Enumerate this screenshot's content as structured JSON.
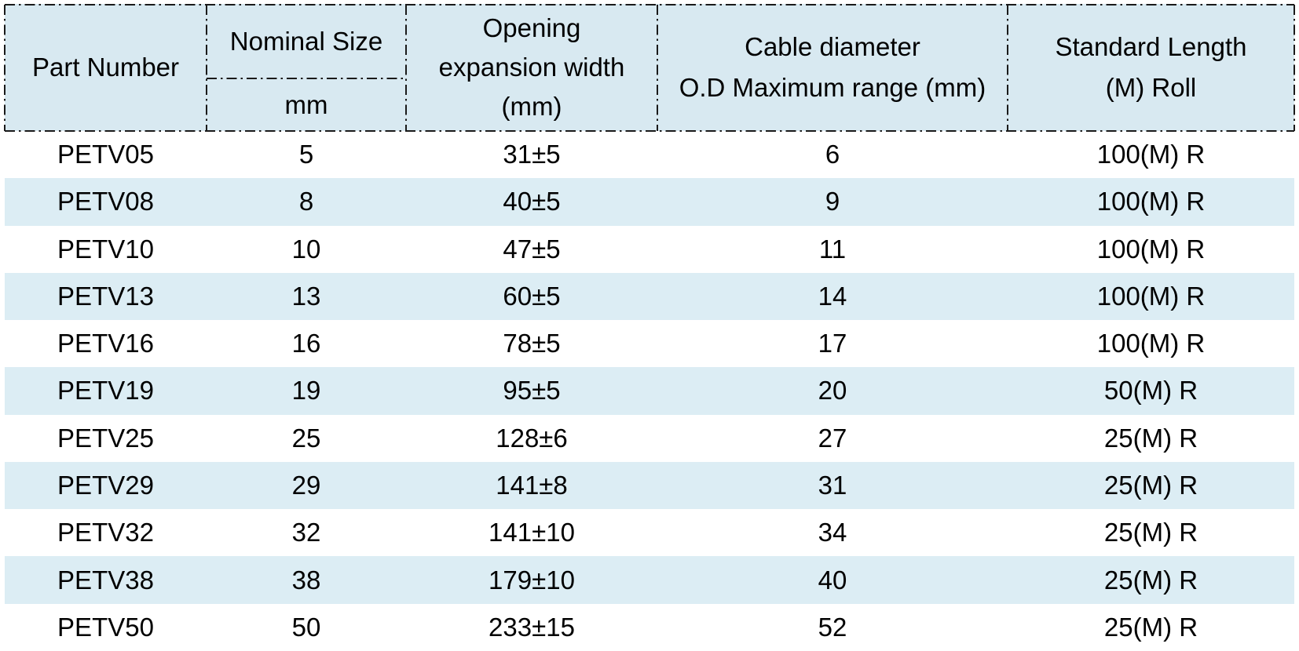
{
  "colors": {
    "header_bg": "#d8e9f1",
    "row_alt_bg": "#dcedf4",
    "border": "#1a1a1a",
    "text": "#000000"
  },
  "table": {
    "header": {
      "part_number": "Part Number",
      "nominal_size": "Nominal Size",
      "nominal_size_unit": "mm",
      "opening_lines": [
        "Opening",
        "expansion width",
        "(mm)"
      ],
      "cable_lines": [
        "Cable diameter",
        "O.D Maximum range (mm)"
      ],
      "length_lines": [
        "Standard Length",
        "(M) Roll"
      ]
    },
    "rows": [
      {
        "part_number": "PETV05",
        "nominal_size_mm": "5",
        "opening_expansion_width_mm": "31±5",
        "cable_diameter_od_max_mm": "6",
        "standard_length_roll": "100(M) R"
      },
      {
        "part_number": "PETV08",
        "nominal_size_mm": "8",
        "opening_expansion_width_mm": "40±5",
        "cable_diameter_od_max_mm": "9",
        "standard_length_roll": "100(M) R"
      },
      {
        "part_number": "PETV10",
        "nominal_size_mm": "10",
        "opening_expansion_width_mm": "47±5",
        "cable_diameter_od_max_mm": "11",
        "standard_length_roll": "100(M) R"
      },
      {
        "part_number": "PETV13",
        "nominal_size_mm": "13",
        "opening_expansion_width_mm": "60±5",
        "cable_diameter_od_max_mm": "14",
        "standard_length_roll": "100(M) R"
      },
      {
        "part_number": "PETV16",
        "nominal_size_mm": "16",
        "opening_expansion_width_mm": "78±5",
        "cable_diameter_od_max_mm": "17",
        "standard_length_roll": "100(M) R"
      },
      {
        "part_number": "PETV19",
        "nominal_size_mm": "19",
        "opening_expansion_width_mm": "95±5",
        "cable_diameter_od_max_mm": "20",
        "standard_length_roll": "50(M) R"
      },
      {
        "part_number": "PETV25",
        "nominal_size_mm": "25",
        "opening_expansion_width_mm": "128±6",
        "cable_diameter_od_max_mm": "27",
        "standard_length_roll": "25(M) R"
      },
      {
        "part_number": "PETV29",
        "nominal_size_mm": "29",
        "opening_expansion_width_mm": "141±8",
        "cable_diameter_od_max_mm": "31",
        "standard_length_roll": "25(M) R"
      },
      {
        "part_number": "PETV32",
        "nominal_size_mm": "32",
        "opening_expansion_width_mm": "141±10",
        "cable_diameter_od_max_mm": "34",
        "standard_length_roll": "25(M) R"
      },
      {
        "part_number": "PETV38",
        "nominal_size_mm": "38",
        "opening_expansion_width_mm": "179±10",
        "cable_diameter_od_max_mm": "40",
        "standard_length_roll": "25(M) R"
      },
      {
        "part_number": "PETV50",
        "nominal_size_mm": "50",
        "opening_expansion_width_mm": "233±15",
        "cable_diameter_od_max_mm": "52",
        "standard_length_roll": "25(M) R"
      }
    ]
  }
}
